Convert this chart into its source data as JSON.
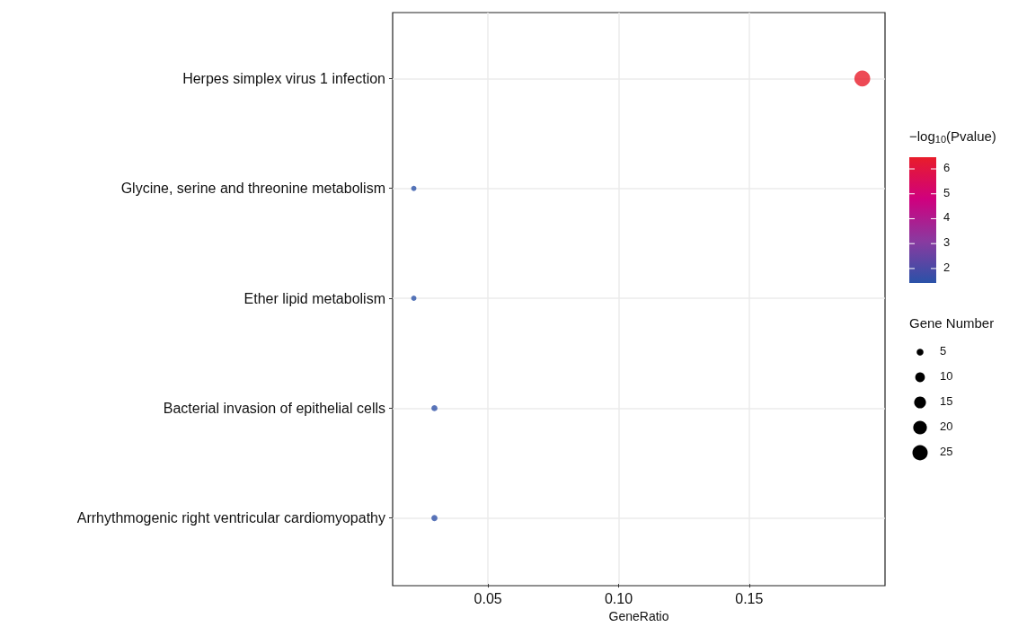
{
  "chart_data": {
    "type": "bubble",
    "orientation": "horizontal",
    "xlabel": "GeneRatio",
    "clabel": "−log$_{10}$(Pvalue)",
    "legend_title": "Gene Number",
    "categories": [
      "Herpes simplex virus 1 infection",
      "Glycine, serine and threonine metabolism",
      "Ether lipid metabolism",
      "Bacterial invasion of epithelial cells",
      "Arrhythmogenic right ventricular cardiomyopathy"
    ],
    "values": [
      0.1933,
      0.0216,
      0.0216,
      0.0295,
      0.0295
    ],
    "sizes": [
      27,
      3,
      3,
      4,
      4
    ],
    "size_legend": [
      5,
      10,
      15,
      20,
      25
    ],
    "cvalues": [
      6.47,
      1.45,
      1.45,
      1.5,
      1.5
    ],
    "clim": [
      1.42,
      6.47
    ],
    "cticks": [
      2,
      3,
      4,
      5,
      6
    ],
    "xlim": [
      0.0135,
      0.202
    ],
    "xticks": [
      {
        "value": 0.05,
        "label": "0.05"
      },
      {
        "value": 0.1,
        "label": "0.10"
      },
      {
        "value": 0.15,
        "label": "0.15"
      }
    ],
    "grid": true,
    "marker": "circle"
  }
}
